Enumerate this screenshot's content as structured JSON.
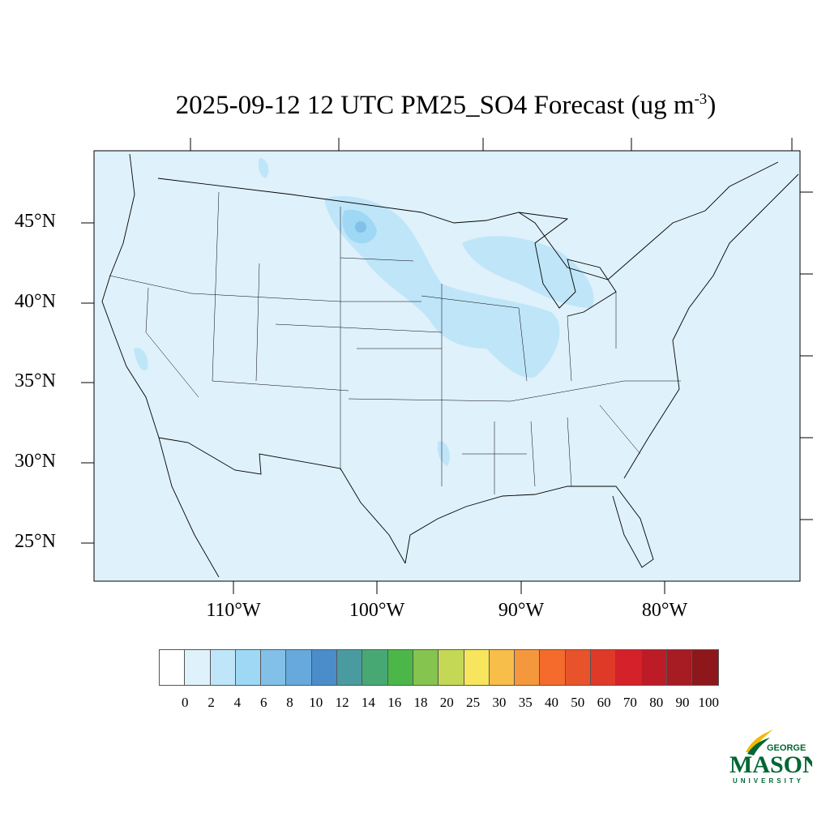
{
  "title": {
    "main": "2025-09-12 12 UTC PM25_SO4 Forecast (ug m",
    "exponent": "-3",
    "close": ")"
  },
  "lat_labels": [
    "45°N",
    "40°N",
    "35°N",
    "30°N",
    "25°N"
  ],
  "lon_labels": [
    "110°W",
    "100°W",
    "90°W",
    "80°W"
  ],
  "colorbar": {
    "labels": [
      "0",
      "2",
      "4",
      "6",
      "8",
      "10",
      "12",
      "14",
      "16",
      "18",
      "20",
      "25",
      "30",
      "35",
      "40",
      "50",
      "60",
      "70",
      "80",
      "90",
      "100"
    ],
    "colors": [
      "#ffffff",
      "#dff1fb",
      "#bfe5f8",
      "#9fd8f5",
      "#83c0e8",
      "#67a9dc",
      "#4a8dca",
      "#4a9ba0",
      "#48a874",
      "#4cb749",
      "#84c44f",
      "#c4d856",
      "#f7e65d",
      "#f7be4a",
      "#f5973d",
      "#f46b2b",
      "#e8532c",
      "#df3a28",
      "#d52129",
      "#bd1c27",
      "#a71b22",
      "#8e171c"
    ]
  },
  "logo": {
    "line1": "GEORGE",
    "line2": "MASON",
    "line3": "UNIVERSITY",
    "green": "#006633",
    "gold": "#f2b800"
  },
  "map_colors": {
    "background": "#dff1fb",
    "level2": "#bfe5f8",
    "level3": "#9fd8f5",
    "level4": "#83c0e8"
  }
}
